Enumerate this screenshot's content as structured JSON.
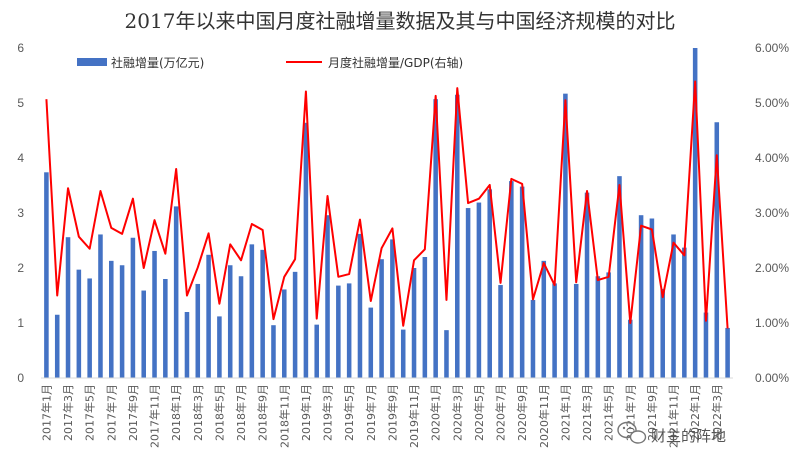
{
  "chart_data": {
    "type": "bar+line",
    "title": "2017年以来中国月度社融增量数据及其与中国经济规模的对比",
    "categories": [
      "2017年1月",
      "2017年2月",
      "2017年3月",
      "2017年4月",
      "2017年5月",
      "2017年6月",
      "2017年7月",
      "2017年8月",
      "2017年9月",
      "2017年10月",
      "2017年11月",
      "2017年12月",
      "2018年1月",
      "2018年2月",
      "2018年3月",
      "2018年4月",
      "2018年5月",
      "2018年6月",
      "2018年7月",
      "2018年8月",
      "2018年9月",
      "2018年10月",
      "2018年11月",
      "2018年12月",
      "2019年1月",
      "2019年2月",
      "2019年3月",
      "2019年4月",
      "2019年5月",
      "2019年6月",
      "2019年7月",
      "2019年8月",
      "2019年9月",
      "2019年10月",
      "2019年11月",
      "2019年12月",
      "2020年1月",
      "2020年2月",
      "2020年3月",
      "2020年4月",
      "2020年5月",
      "2020年6月",
      "2020年7月",
      "2020年8月",
      "2020年9月",
      "2020年10月",
      "2020年11月",
      "2020年12月",
      "2021年1月",
      "2021年2月",
      "2021年3月",
      "2021年4月",
      "2021年5月",
      "2021年6月",
      "2021年7月",
      "2021年8月",
      "2021年9月",
      "2021年10月",
      "2021年11月",
      "2021年12月",
      "2022年1月",
      "2022年2月",
      "2022年3月",
      "2022年4月"
    ],
    "xtick_labels": [
      "2017年1月",
      "2017年3月",
      "2017年5月",
      "2017年7月",
      "2017年9月",
      "2017年11月",
      "2018年1月",
      "2018年3月",
      "2018年5月",
      "2018年7月",
      "2018年9月",
      "2018年11月",
      "2019年1月",
      "2019年3月",
      "2019年5月",
      "2019年7月",
      "2019年9月",
      "2019年11月",
      "2020年1月",
      "2020年3月",
      "2020年5月",
      "2020年7月",
      "2020年9月",
      "2020年11月",
      "2021年1月",
      "2021年3月",
      "2021年5月",
      "2021年7月",
      "2021年9月",
      "2021年11月",
      "2022年1月",
      "2022年3月"
    ],
    "series": [
      {
        "name": "社融增量(万亿元)",
        "type": "bar",
        "axis": "left",
        "color": "#4472C4",
        "values": [
          3.74,
          1.15,
          2.56,
          1.97,
          1.81,
          2.61,
          2.13,
          2.05,
          2.55,
          1.59,
          2.31,
          1.8,
          3.12,
          1.2,
          1.71,
          2.24,
          1.12,
          2.05,
          1.85,
          2.43,
          2.33,
          0.96,
          1.61,
          1.93,
          4.64,
          0.97,
          2.96,
          1.68,
          1.72,
          2.62,
          1.28,
          2.16,
          2.52,
          0.88,
          2.0,
          2.2,
          5.07,
          0.87,
          5.15,
          3.09,
          3.19,
          3.43,
          1.69,
          3.58,
          3.48,
          1.42,
          2.13,
          1.72,
          5.17,
          1.71,
          3.37,
          1.85,
          1.92,
          3.67,
          1.06,
          2.96,
          2.9,
          1.62,
          2.61,
          2.37,
          6.17,
          1.19,
          4.65,
          0.91
        ]
      },
      {
        "name": "月度社融增量/GDP(右轴)",
        "type": "line",
        "axis": "right",
        "color": "#FF0000",
        "values": [
          5.07,
          1.5,
          3.45,
          2.57,
          2.35,
          3.4,
          2.73,
          2.62,
          3.26,
          2.0,
          2.87,
          2.26,
          3.8,
          1.5,
          2.01,
          2.63,
          1.35,
          2.43,
          2.14,
          2.8,
          2.69,
          1.07,
          1.84,
          2.16,
          5.21,
          1.08,
          3.31,
          1.84,
          1.89,
          2.88,
          1.4,
          2.36,
          2.72,
          0.95,
          2.14,
          2.34,
          5.13,
          1.42,
          5.27,
          3.18,
          3.26,
          3.51,
          1.73,
          3.62,
          3.53,
          1.43,
          2.09,
          1.69,
          5.05,
          1.74,
          3.4,
          1.78,
          1.84,
          3.51,
          1.0,
          2.77,
          2.7,
          1.47,
          2.46,
          2.23,
          5.39,
          1.04,
          4.05,
          0.9
        ]
      }
    ],
    "y_left": {
      "min": 0,
      "max": 6,
      "ticks": [
        "0",
        "1",
        "2",
        "3",
        "4",
        "5",
        "6"
      ]
    },
    "y_right": {
      "min": 0,
      "max": 6,
      "ticks": [
        "0.00%",
        "1.00%",
        "2.00%",
        "3.00%",
        "4.00%",
        "5.00%",
        "6.00%"
      ]
    },
    "grid": false,
    "legend_position": "top"
  },
  "watermark": {
    "icon": "wechat-icon",
    "text": "财主的阵地"
  }
}
